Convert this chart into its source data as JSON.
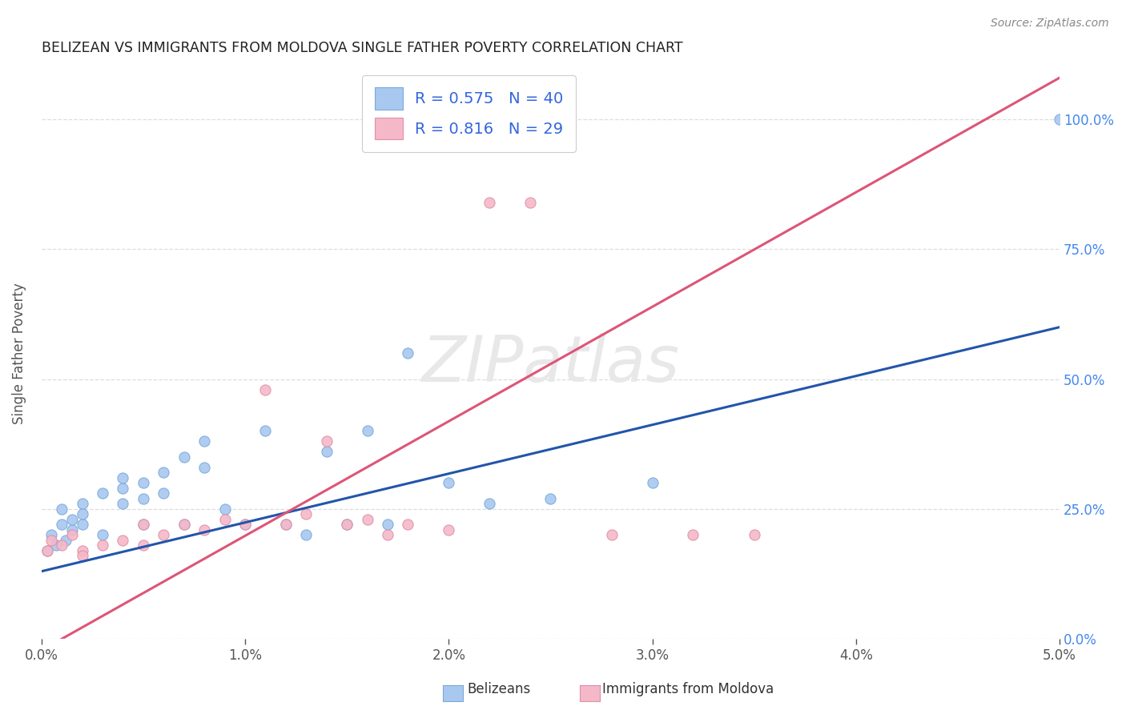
{
  "title": "BELIZEAN VS IMMIGRANTS FROM MOLDOVA SINGLE FATHER POVERTY CORRELATION CHART",
  "source": "Source: ZipAtlas.com",
  "ylabel": "Single Father Poverty",
  "legend_blue_label": "Belizeans",
  "legend_pink_label": "Immigrants from Moldova",
  "blue_color": "#A8C8F0",
  "blue_edge_color": "#7AAAD8",
  "pink_color": "#F5B8C8",
  "pink_edge_color": "#E090A8",
  "blue_line_color": "#2255AA",
  "pink_line_color": "#DD5577",
  "watermark": "ZIPatlas",
  "blue_scatter_x": [
    0.0003,
    0.0005,
    0.0007,
    0.001,
    0.001,
    0.0012,
    0.0015,
    0.0015,
    0.002,
    0.002,
    0.002,
    0.003,
    0.003,
    0.004,
    0.004,
    0.004,
    0.005,
    0.005,
    0.005,
    0.006,
    0.006,
    0.007,
    0.007,
    0.008,
    0.008,
    0.009,
    0.01,
    0.011,
    0.012,
    0.013,
    0.014,
    0.015,
    0.016,
    0.017,
    0.018,
    0.02,
    0.022,
    0.025,
    0.03,
    0.05
  ],
  "blue_scatter_y": [
    0.17,
    0.2,
    0.18,
    0.22,
    0.25,
    0.19,
    0.21,
    0.23,
    0.22,
    0.26,
    0.24,
    0.2,
    0.28,
    0.29,
    0.31,
    0.26,
    0.22,
    0.27,
    0.3,
    0.32,
    0.28,
    0.35,
    0.22,
    0.33,
    0.38,
    0.25,
    0.22,
    0.4,
    0.22,
    0.2,
    0.36,
    0.22,
    0.4,
    0.22,
    0.55,
    0.3,
    0.26,
    0.27,
    0.3,
    1.0
  ],
  "pink_scatter_x": [
    0.0003,
    0.0005,
    0.001,
    0.0015,
    0.002,
    0.002,
    0.003,
    0.004,
    0.005,
    0.005,
    0.006,
    0.007,
    0.008,
    0.009,
    0.01,
    0.011,
    0.012,
    0.013,
    0.014,
    0.015,
    0.016,
    0.017,
    0.018,
    0.02,
    0.022,
    0.024,
    0.028,
    0.032,
    0.035
  ],
  "pink_scatter_y": [
    0.17,
    0.19,
    0.18,
    0.2,
    0.17,
    0.16,
    0.18,
    0.19,
    0.18,
    0.22,
    0.2,
    0.22,
    0.21,
    0.23,
    0.22,
    0.48,
    0.22,
    0.24,
    0.38,
    0.22,
    0.23,
    0.2,
    0.22,
    0.21,
    0.84,
    0.84,
    0.2,
    0.2,
    0.2
  ],
  "blue_line_x": [
    0.0,
    0.05
  ],
  "blue_line_y": [
    0.13,
    0.6
  ],
  "pink_line_x": [
    0.001,
    0.05
  ],
  "pink_line_y": [
    0.0,
    1.08
  ],
  "xlim": [
    0.0,
    0.05
  ],
  "ylim": [
    0.0,
    1.1
  ],
  "x_ticks": [
    0.0,
    0.01,
    0.02,
    0.03,
    0.04,
    0.05
  ],
  "y_ticks": [
    0.0,
    0.25,
    0.5,
    0.75,
    1.0
  ],
  "background_color": "#FFFFFF",
  "grid_color": "#DDDDDD",
  "title_color": "#222222",
  "source_color": "#888888",
  "tick_color": "#555555",
  "right_tick_color": "#4488EE"
}
